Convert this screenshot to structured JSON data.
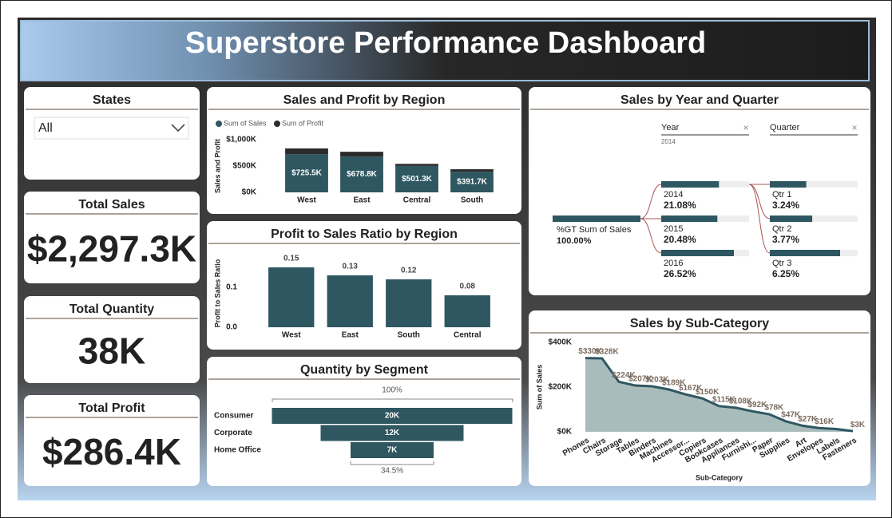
{
  "header": {
    "title": "Superstore Performance Dashboard"
  },
  "slicer": {
    "label": "States",
    "value": "All"
  },
  "cards": [
    {
      "label": "Total Sales",
      "value": "$2,297.3K"
    },
    {
      "label": "Total Quantity",
      "value": "38K"
    },
    {
      "label": "Total Profit",
      "value": "$286.4K"
    }
  ],
  "chart_data": [
    {
      "type": "bar",
      "title": "Sales and Profit by Region",
      "stacked": true,
      "y_label": "Sales and Profit",
      "categories": [
        "West",
        "East",
        "Central",
        "South"
      ],
      "series": [
        {
          "name": "Sum of Sales",
          "color": "#2e5761",
          "values": [
            725500,
            678800,
            501300,
            391700
          ],
          "value_labels": [
            "$725.5K",
            "$678.8K",
            "$501.3K",
            "$391.7K"
          ]
        },
        {
          "name": "Sum of Profit",
          "color": "#2b2b2b",
          "values": [
            108400,
            91500,
            39700,
            46700
          ]
        }
      ],
      "ylim": [
        0,
        1000000
      ],
      "yticks": [
        {
          "value": 0,
          "label": "$0K"
        },
        {
          "value": 500000,
          "label": "$500K"
        },
        {
          "value": 1000000,
          "label": "$1,000K"
        }
      ]
    },
    {
      "type": "bar",
      "title": "Profit to Sales Ratio by Region",
      "y_label": "Profit to Sales Ratio",
      "categories": [
        "West",
        "East",
        "South",
        "Central"
      ],
      "values": [
        0.15,
        0.13,
        0.12,
        0.08
      ],
      "color": "#2e5761",
      "ylim": [
        0,
        0.17
      ],
      "yticks": [
        {
          "value": 0,
          "label": "0.0"
        },
        0.1
      ]
    },
    {
      "type": "funnel",
      "title": "Quantity by Segment",
      "top_label": "100%",
      "bottom_label": "34.5%",
      "categories": [
        "Consumer",
        "Corporate",
        "Home Office"
      ],
      "values": [
        19521,
        11608,
        6744
      ],
      "value_labels": [
        "20K",
        "12K",
        "7K"
      ],
      "color": "#2e5761"
    },
    {
      "type": "decomposition-tree",
      "title": "Sales by Year and Quarter",
      "filters": [
        {
          "label": "Year",
          "selected": "2014"
        },
        {
          "label": "Quarter"
        }
      ],
      "root": {
        "label": "%GT Sum of Sales",
        "value": 100,
        "value_label": "100.00%"
      },
      "levels": [
        {
          "categories": [
            "2014",
            "2015",
            "2016"
          ],
          "values": [
            21.08,
            20.48,
            26.52
          ],
          "value_labels": [
            "21.08%",
            "20.48%",
            "26.52%"
          ]
        },
        {
          "categories": [
            "Qtr 1",
            "Qtr 2",
            "Qtr 3"
          ],
          "values": [
            3.24,
            3.77,
            6.25
          ],
          "value_labels": [
            "3.24%",
            "3.77%",
            "6.25%"
          ]
        }
      ],
      "color": "#2e5761"
    },
    {
      "type": "area",
      "title": "Sales by Sub-Category",
      "x_label": "Sub-Category",
      "y_label": "Sum of Sales",
      "categories": [
        "Phones",
        "Chairs",
        "Storage",
        "Tables",
        "Binders",
        "Machines",
        "Accessor...",
        "Copiers",
        "Bookcases",
        "Appliances",
        "Furnishi...",
        "Paper",
        "Supplies",
        "Art",
        "Envelopes",
        "Labels",
        "Fasteners"
      ],
      "values": [
        330007,
        328449,
        223844,
        206966,
        203413,
        189239,
        167380,
        149528,
        114880,
        107532,
        91705,
        78479,
        46674,
        27119,
        16476,
        12486,
        3024
      ],
      "value_labels": [
        "$330K",
        "$328K",
        "$224K",
        "$207K",
        "$203K",
        "$189K",
        "$167K",
        "$150K",
        "$115K",
        "$108K",
        "$92K",
        "$78K",
        "$47K",
        "$27K",
        "$16K",
        null,
        "$3K"
      ],
      "color": "#2e5761",
      "fill": "#a9bcbc",
      "ylim": [
        0,
        400000
      ],
      "yticks": [
        {
          "value": 0,
          "label": "$0K"
        },
        {
          "value": 200000,
          "label": "$200K"
        },
        {
          "value": 400000,
          "label": "$400K"
        }
      ]
    }
  ]
}
